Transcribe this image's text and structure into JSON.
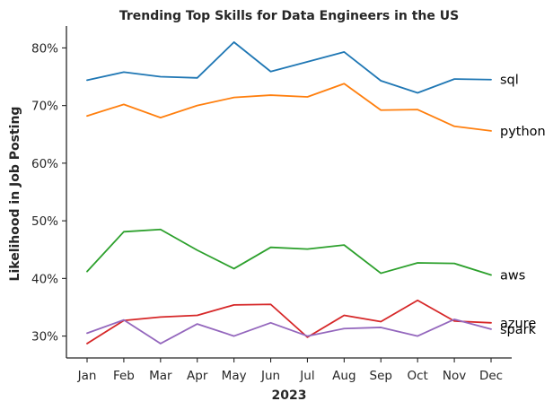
{
  "chart_data": {
    "type": "line",
    "title": "Trending Top Skills for Data Engineers in the US",
    "xlabel": "2023",
    "ylabel": "Likelihood in Job Posting",
    "categories": [
      "Jan",
      "Feb",
      "Mar",
      "Apr",
      "May",
      "Jun",
      "Jul",
      "Aug",
      "Sep",
      "Oct",
      "Nov",
      "Dec"
    ],
    "ylim": [
      26.2,
      83.8
    ],
    "yticks": [
      30,
      40,
      50,
      60,
      70,
      80
    ],
    "ytick_labels": [
      "30%",
      "40%",
      "50%",
      "60%",
      "70%",
      "80%"
    ],
    "grid": false,
    "legend": "none (series labels at line ends)",
    "series": [
      {
        "name": "sql",
        "color": "#1f77b4",
        "values": [
          74.4,
          75.8,
          75.0,
          74.8,
          81.0,
          75.9,
          77.6,
          79.3,
          74.3,
          72.2,
          74.6,
          74.5
        ]
      },
      {
        "name": "python",
        "color": "#ff7f0e",
        "values": [
          68.2,
          70.2,
          67.9,
          70.0,
          71.4,
          71.8,
          71.5,
          73.8,
          69.2,
          69.3,
          66.4,
          65.6
        ]
      },
      {
        "name": "aws",
        "color": "#2ca02c",
        "values": [
          41.2,
          48.1,
          48.5,
          44.9,
          41.7,
          45.4,
          45.1,
          45.8,
          40.9,
          42.7,
          42.6,
          40.6
        ]
      },
      {
        "name": "azure",
        "color": "#d62728",
        "values": [
          28.7,
          32.7,
          33.3,
          33.6,
          35.4,
          35.5,
          29.8,
          33.6,
          32.5,
          36.2,
          32.6,
          32.3
        ]
      },
      {
        "name": "spark",
        "color": "#9467bd",
        "values": [
          30.5,
          32.8,
          28.7,
          32.1,
          30.0,
          32.3,
          30.0,
          31.3,
          31.5,
          30.0,
          32.9,
          31.2
        ]
      }
    ]
  }
}
